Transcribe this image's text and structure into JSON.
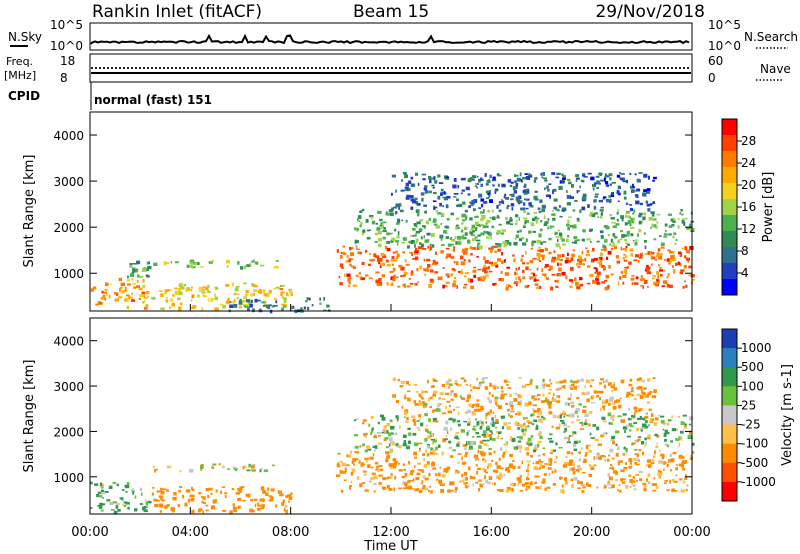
{
  "header": {
    "station": "Rankin Inlet (fitACF)",
    "beam": "Beam 15",
    "date": "29/Nov/2018"
  },
  "noise_panel": {
    "left_label": "N.Sky",
    "right_label": "N.Search",
    "left_ticks": [
      "10^5",
      "10^0"
    ],
    "right_ticks": [
      "10^5",
      "10^0"
    ]
  },
  "freq_panel": {
    "left_label_1": "Freq.",
    "left_label_2": "[MHz]",
    "left_ticks": [
      "18",
      "8"
    ],
    "right_label": "Nave",
    "right_ticks": [
      "60",
      "0"
    ]
  },
  "cpid": {
    "label": "CPID",
    "value": "normal (fast) 151"
  },
  "x_axis": {
    "ticks": [
      "00:00",
      "04:00",
      "08:00",
      "12:00",
      "16:00",
      "20:00",
      "00:00"
    ],
    "title": "Time UT"
  },
  "power_colorbar": {
    "title": "Power [dB]",
    "ticks": [
      "28",
      "24",
      "20",
      "16",
      "12",
      "8",
      "4"
    ],
    "colors": [
      "#ff0000",
      "#ff4000",
      "#ff7a00",
      "#ffaa00",
      "#f2d21e",
      "#9fd34a",
      "#4bb14c",
      "#2e8b57",
      "#2f6f8f",
      "#1f3fbf",
      "#0000ff"
    ]
  },
  "velocity_colorbar": {
    "title": "Velocity [m s-1]",
    "ticks": [
      "1000",
      "500",
      "100",
      "25",
      "-25",
      "-100",
      "-500",
      "-1000"
    ],
    "colors": [
      "#1a3fb5",
      "#2a7fbf",
      "#2f9a4f",
      "#6ac13c",
      "#c8c8c8",
      "#ffc04a",
      "#ff8c00",
      "#ff5000",
      "#ff0000"
    ]
  },
  "chart_data": {
    "type": "heatmap",
    "title": "Rankin Inlet (fitACF)",
    "xlabel": "Time UT",
    "ylabel": "Slant Range [km]",
    "xlim": [
      0,
      24
    ],
    "ylim": [
      180,
      4500
    ],
    "y_ticks": [
      1000,
      2000,
      3000,
      4000
    ],
    "panels": [
      {
        "name": "Power",
        "zlabel": "Power [dB]",
        "zlim": [
          0,
          30
        ],
        "patches": [
          {
            "t0": 0.0,
            "t1": 2.3,
            "r0": 250,
            "r1": 900,
            "value": 22
          },
          {
            "t0": 1.4,
            "t1": 2.3,
            "r0": 900,
            "r1": 1300,
            "value": 10
          },
          {
            "t0": 2.4,
            "t1": 7.6,
            "r0": 1150,
            "r1": 1300,
            "value": 14
          },
          {
            "t0": 2.4,
            "t1": 8.0,
            "r0": 250,
            "r1": 800,
            "value": 18
          },
          {
            "t0": 5.5,
            "t1": 9.5,
            "r0": 200,
            "r1": 500,
            "value": 8
          },
          {
            "t0": 9.8,
            "t1": 24.0,
            "r0": 700,
            "r1": 1600,
            "value": 24
          },
          {
            "t0": 10.5,
            "t1": 24.0,
            "r0": 1600,
            "r1": 2400,
            "value": 12
          },
          {
            "t0": 12.0,
            "t1": 22.5,
            "r0": 2400,
            "r1": 3200,
            "value": 6
          }
        ]
      },
      {
        "name": "Velocity",
        "zlabel": "Velocity [m s-1]",
        "zlim": [
          -1000,
          1000
        ],
        "patches": [
          {
            "t0": 0.0,
            "t1": 2.3,
            "r0": 250,
            "r1": 900,
            "value": 150
          },
          {
            "t0": 2.4,
            "t1": 7.6,
            "r0": 1150,
            "r1": 1300,
            "value": 0
          },
          {
            "t0": 2.4,
            "t1": 8.0,
            "r0": 250,
            "r1": 800,
            "value": -300
          },
          {
            "t0": 9.8,
            "t1": 24.0,
            "r0": 700,
            "r1": 1600,
            "value": -200
          },
          {
            "t0": 10.5,
            "t1": 24.0,
            "r0": 1600,
            "r1": 2400,
            "value": 50
          },
          {
            "t0": 12.0,
            "t1": 22.5,
            "r0": 2400,
            "r1": 3200,
            "value": -150
          }
        ]
      }
    ]
  }
}
